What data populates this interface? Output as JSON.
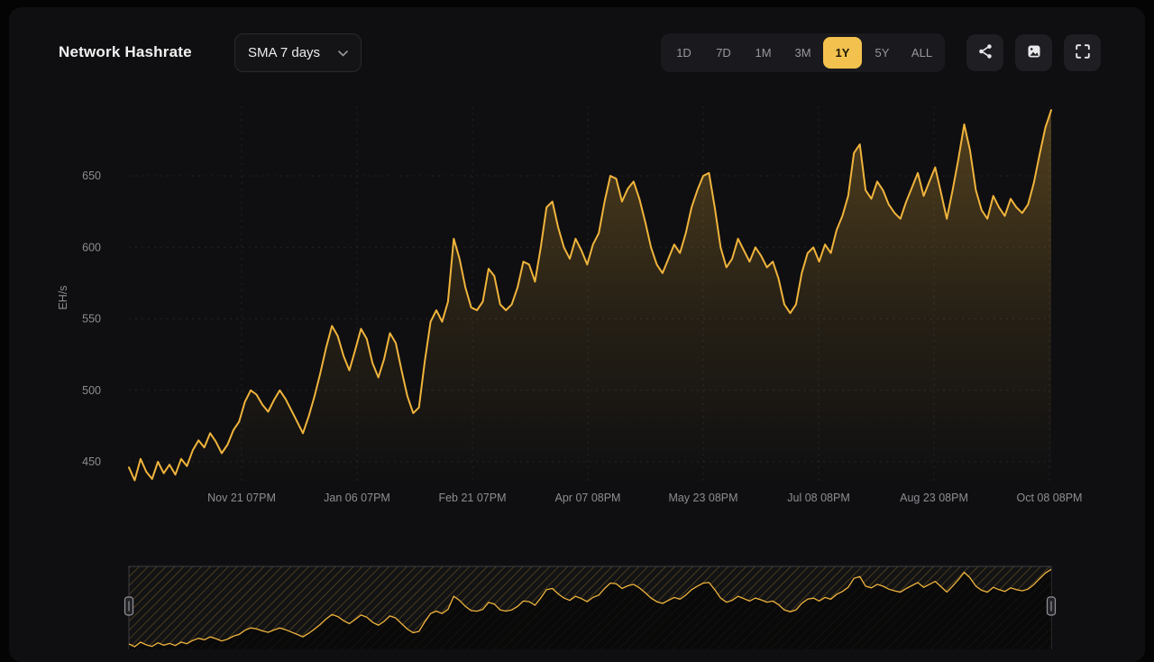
{
  "header": {
    "title": "Network Hashrate",
    "sma_selector": {
      "label": "SMA 7 days"
    },
    "ranges": [
      "1D",
      "7D",
      "1M",
      "3M",
      "1Y",
      "5Y",
      "ALL"
    ],
    "active_range": "1Y",
    "icon_buttons": [
      "share-icon",
      "image-snapshot-icon",
      "fullscreen-icon"
    ]
  },
  "colors": {
    "accent_gold": "#f0b43c",
    "active_range_bg": "#f3c24e",
    "background": "#0f0f11",
    "axis_text": "#8d8d93"
  },
  "chart_data": {
    "type": "area",
    "title": "Network Hashrate",
    "xlabel": "",
    "ylabel": "EH/s",
    "ylim": [
      434,
      700
    ],
    "y_ticks": [
      450,
      500,
      550,
      600,
      650
    ],
    "x_tick_labels": [
      "Nov 21 07PM",
      "Jan 06 07PM",
      "Feb 21 07PM",
      "Apr 07 08PM",
      "May 23 08PM",
      "Jul 08 08PM",
      "Aug 23 08PM",
      "Oct 08 08PM"
    ],
    "grid": "dashed",
    "legend_position": "none",
    "navigator": {
      "present": true,
      "selected_range": "full"
    },
    "series": [
      {
        "name": "Network Hashrate (SMA 7 days)",
        "unit": "EH/s",
        "color": "#f0b43c",
        "values": [
          446,
          437,
          452,
          443,
          438,
          450,
          442,
          448,
          441,
          452,
          447,
          458,
          465,
          460,
          470,
          464,
          456,
          462,
          472,
          478,
          492,
          500,
          497,
          490,
          485,
          493,
          500,
          494,
          486,
          478,
          470,
          482,
          496,
          512,
          530,
          545,
          538,
          524,
          514,
          528,
          543,
          536,
          519,
          509,
          522,
          540,
          533,
          514,
          496,
          484,
          488,
          520,
          548,
          556,
          548,
          562,
          606,
          592,
          572,
          558,
          556,
          562,
          585,
          580,
          560,
          556,
          560,
          572,
          590,
          588,
          576,
          600,
          628,
          632,
          614,
          600,
          592,
          606,
          598,
          588,
          602,
          610,
          632,
          650,
          648,
          632,
          641,
          646,
          634,
          618,
          600,
          588,
          582,
          592,
          602,
          596,
          610,
          628,
          640,
          650,
          652,
          628,
          600,
          586,
          592,
          606,
          598,
          590,
          600,
          594,
          586,
          590,
          578,
          560,
          554,
          560,
          582,
          596,
          600,
          590,
          602,
          596,
          612,
          622,
          636,
          666,
          672,
          640,
          634,
          646,
          640,
          630,
          624,
          620,
          632,
          642,
          652,
          636,
          646,
          656,
          638,
          620,
          640,
          662,
          686,
          668,
          640,
          626,
          620,
          636,
          628,
          622,
          634,
          628,
          624,
          630,
          645,
          665,
          684,
          696
        ]
      }
    ]
  }
}
